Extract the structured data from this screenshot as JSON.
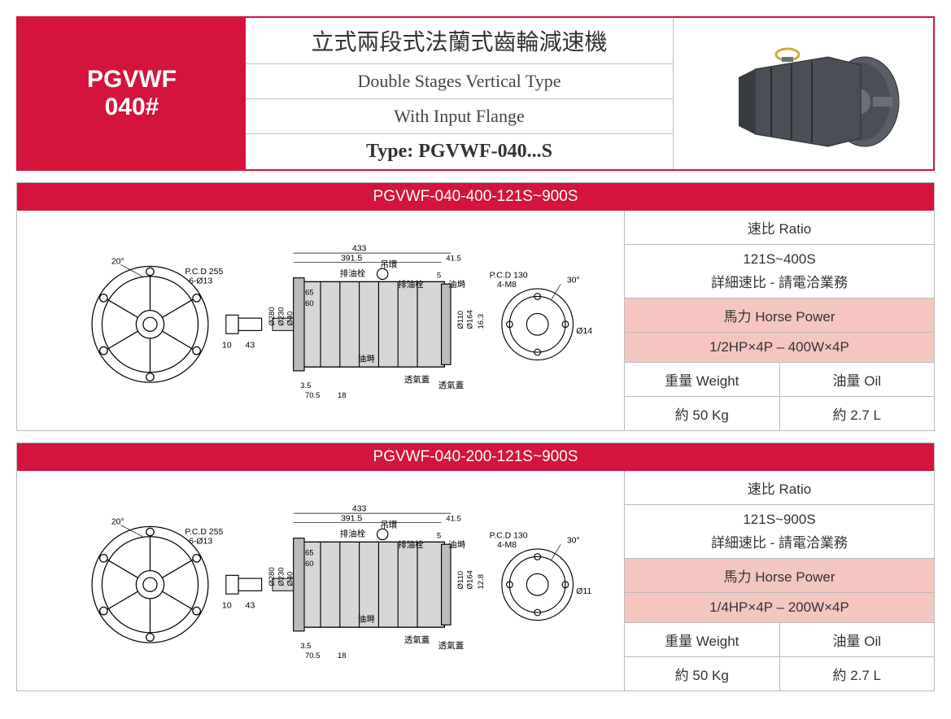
{
  "header": {
    "model_line1": "PGVWF",
    "model_line2": "040#",
    "title_cn": "立式兩段式法蘭式齒輪減速機",
    "title_en1": "Double Stages Vertical Type",
    "title_en2": "With Input Flange",
    "type_label": "Type: PGVWF-040...S"
  },
  "colors": {
    "brand_red": "#d4143c",
    "pink_bg": "#f5c6c0",
    "border_gray": "#bbbbbb",
    "product_body": "#4a4e55",
    "product_dark": "#383b40",
    "product_flange": "#5a5e66",
    "ring_gold": "#d4a83a"
  },
  "drawing_labels": {
    "pcd_left": "P.C.D 255",
    "bolt_left": "6-Ø13",
    "angle_left": "20°",
    "dia_280": "Ø280",
    "dia_230": "Ø230",
    "dia_40": "Ø40",
    "dim_10": "10",
    "dim_43": "43",
    "overall_433": "433",
    "dim_391_5": "391.5",
    "dim_41_5": "41.5",
    "dim_65": "65",
    "dim_60": "60",
    "dim_5": "5",
    "dim_3_5": "3.5",
    "dim_70_5": "70.5",
    "dim_18": "18",
    "drain_plug": "排油栓",
    "lift_ring": "吊環",
    "oil_plug": "油塒",
    "breather": "透氣蓋",
    "pcd_right": "P.C.D 130",
    "bolt_right": "4-M8",
    "angle_right": "30°",
    "dia_110": "Ø110",
    "dia_164": "Ø164",
    "dim_16_3_a": "16.3",
    "dim_12_8_b": "12.8",
    "shaft_a": "Ø14",
    "shaft_b": "Ø11"
  },
  "specs": [
    {
      "title": "PGVWF-040-400-121S~900S",
      "ratio_label": "速比 Ratio",
      "ratio_range": "121S~400S",
      "ratio_note": "詳細速比 - 請電洽業務",
      "hp_label": "馬力 Horse Power",
      "hp_value": "1/2HP×4P – 400W×4P",
      "weight_label": "重量 Weight",
      "weight_value": "約 50 Kg",
      "oil_label": "油量 Oil",
      "oil_value": "約 2.7 L",
      "right_dim": "16.3",
      "shaft_dia": "Ø14"
    },
    {
      "title": "PGVWF-040-200-121S~900S",
      "ratio_label": "速比 Ratio",
      "ratio_range": "121S~900S",
      "ratio_note": "詳細速比 - 請電洽業務",
      "hp_label": "馬力 Horse Power",
      "hp_value": "1/4HP×4P – 200W×4P",
      "weight_label": "重量 Weight",
      "weight_value": "約 50 Kg",
      "oil_label": "油量 Oil",
      "oil_value": "約 2.7 L",
      "right_dim": "12.8",
      "shaft_dia": "Ø11"
    }
  ]
}
